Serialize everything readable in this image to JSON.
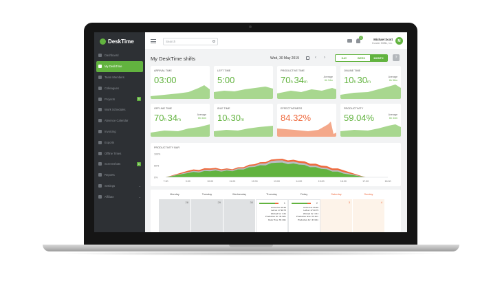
{
  "app": {
    "name": "DeskTime"
  },
  "sidebar": {
    "items": [
      {
        "label": "Dashboard"
      },
      {
        "label": "My DeskTime",
        "active": true
      },
      {
        "label": "Team Members"
      },
      {
        "label": "Colleagues"
      },
      {
        "label": "Projects",
        "badge": "5"
      },
      {
        "label": "Work Schedules"
      },
      {
        "label": "Absence Calendar"
      },
      {
        "label": "Invoicing"
      },
      {
        "label": "Exports"
      },
      {
        "label": "Offline Times"
      },
      {
        "label": "Screenshots",
        "badge": "6"
      },
      {
        "label": "Reports"
      },
      {
        "label": "Settings"
      },
      {
        "label": "Affiliate"
      }
    ]
  },
  "topbar": {
    "search_placeholder": "Search",
    "notifications_count": "12",
    "user_name": "Michael Scott",
    "user_org": "Dunder Mifflin, Inc.",
    "avatar_initial": "M"
  },
  "header": {
    "title": "My DeskTime shifts",
    "date": "Wed, 30 May 2019",
    "views": [
      "DAY",
      "WEEK",
      "MONTH"
    ],
    "active_view": "MONTH",
    "help": "?"
  },
  "metrics": [
    {
      "label": "ARRIVAL TIME",
      "value": "03:00"
    },
    {
      "label": "LEFT TIME",
      "value": "5:00"
    },
    {
      "label": "PRODUCTIVE TIME",
      "value_h": "70",
      "value_m": "34",
      "avg_label": "Average",
      "avg_value": "6h 34m"
    },
    {
      "label": "ONLINE TIME",
      "value_h": "10",
      "value_m": "30",
      "avg_label": "Average",
      "avg_value": "6h 56m"
    },
    {
      "label": "OFFLINE TIME",
      "value_h": "70",
      "value_m": "34",
      "avg_label": "Average",
      "avg_value": "6h 34m"
    },
    {
      "label": "IDLE TIME",
      "value_h": "10",
      "value_m": "30"
    },
    {
      "label": "EFFECTIVENESS",
      "value": "84.32%"
    },
    {
      "label": "PRODUCTIVITY",
      "value": "59.04%",
      "avg_label": "Average",
      "avg_value": "6h 34m"
    }
  ],
  "chart_data": {
    "type": "area",
    "title": "PRODUCTIVITY BAR",
    "x": [
      "7:30",
      "9:00",
      "10:00",
      "11:00",
      "12:00",
      "13:00",
      "14:00",
      "15:00",
      "16:00",
      "17:00",
      "18:00"
    ],
    "y_ticks": [
      "100%",
      "50%",
      "0%"
    ],
    "ylim": [
      0,
      100
    ],
    "series": [
      {
        "values": [
          0,
          28,
          38,
          34,
          56,
          78,
          70,
          50,
          30,
          0,
          0
        ],
        "color": "#ef6a3e"
      },
      {
        "values": [
          0,
          22,
          32,
          30,
          50,
          72,
          62,
          42,
          22,
          0,
          0
        ],
        "color": "#b9bec2"
      },
      {
        "values": [
          0,
          18,
          26,
          26,
          44,
          62,
          54,
          36,
          16,
          0,
          0
        ],
        "color": "#62b33f"
      }
    ]
  },
  "calendar": {
    "days": [
      "Monday",
      "Tuesday",
      "Wednesday",
      "Thursday",
      "Friday",
      "Saturday",
      "Sunday"
    ],
    "dates": [
      "28",
      "29",
      "30",
      "1",
      "2",
      "3",
      "4"
    ],
    "stats_thursday": [
      "Arrived at: 05:30",
      "Left at: 17:30:75",
      "Worked for: 4:41",
      "Productive for: 4h 32m",
      "Desk Time: 6h 10m"
    ],
    "stats_friday": [
      "Arrived at: 05:30",
      "Left at: 17:30:75",
      "Worked for: 4:41",
      "Productive time: 6h 11m",
      "Productive for: 4h 32m"
    ]
  }
}
